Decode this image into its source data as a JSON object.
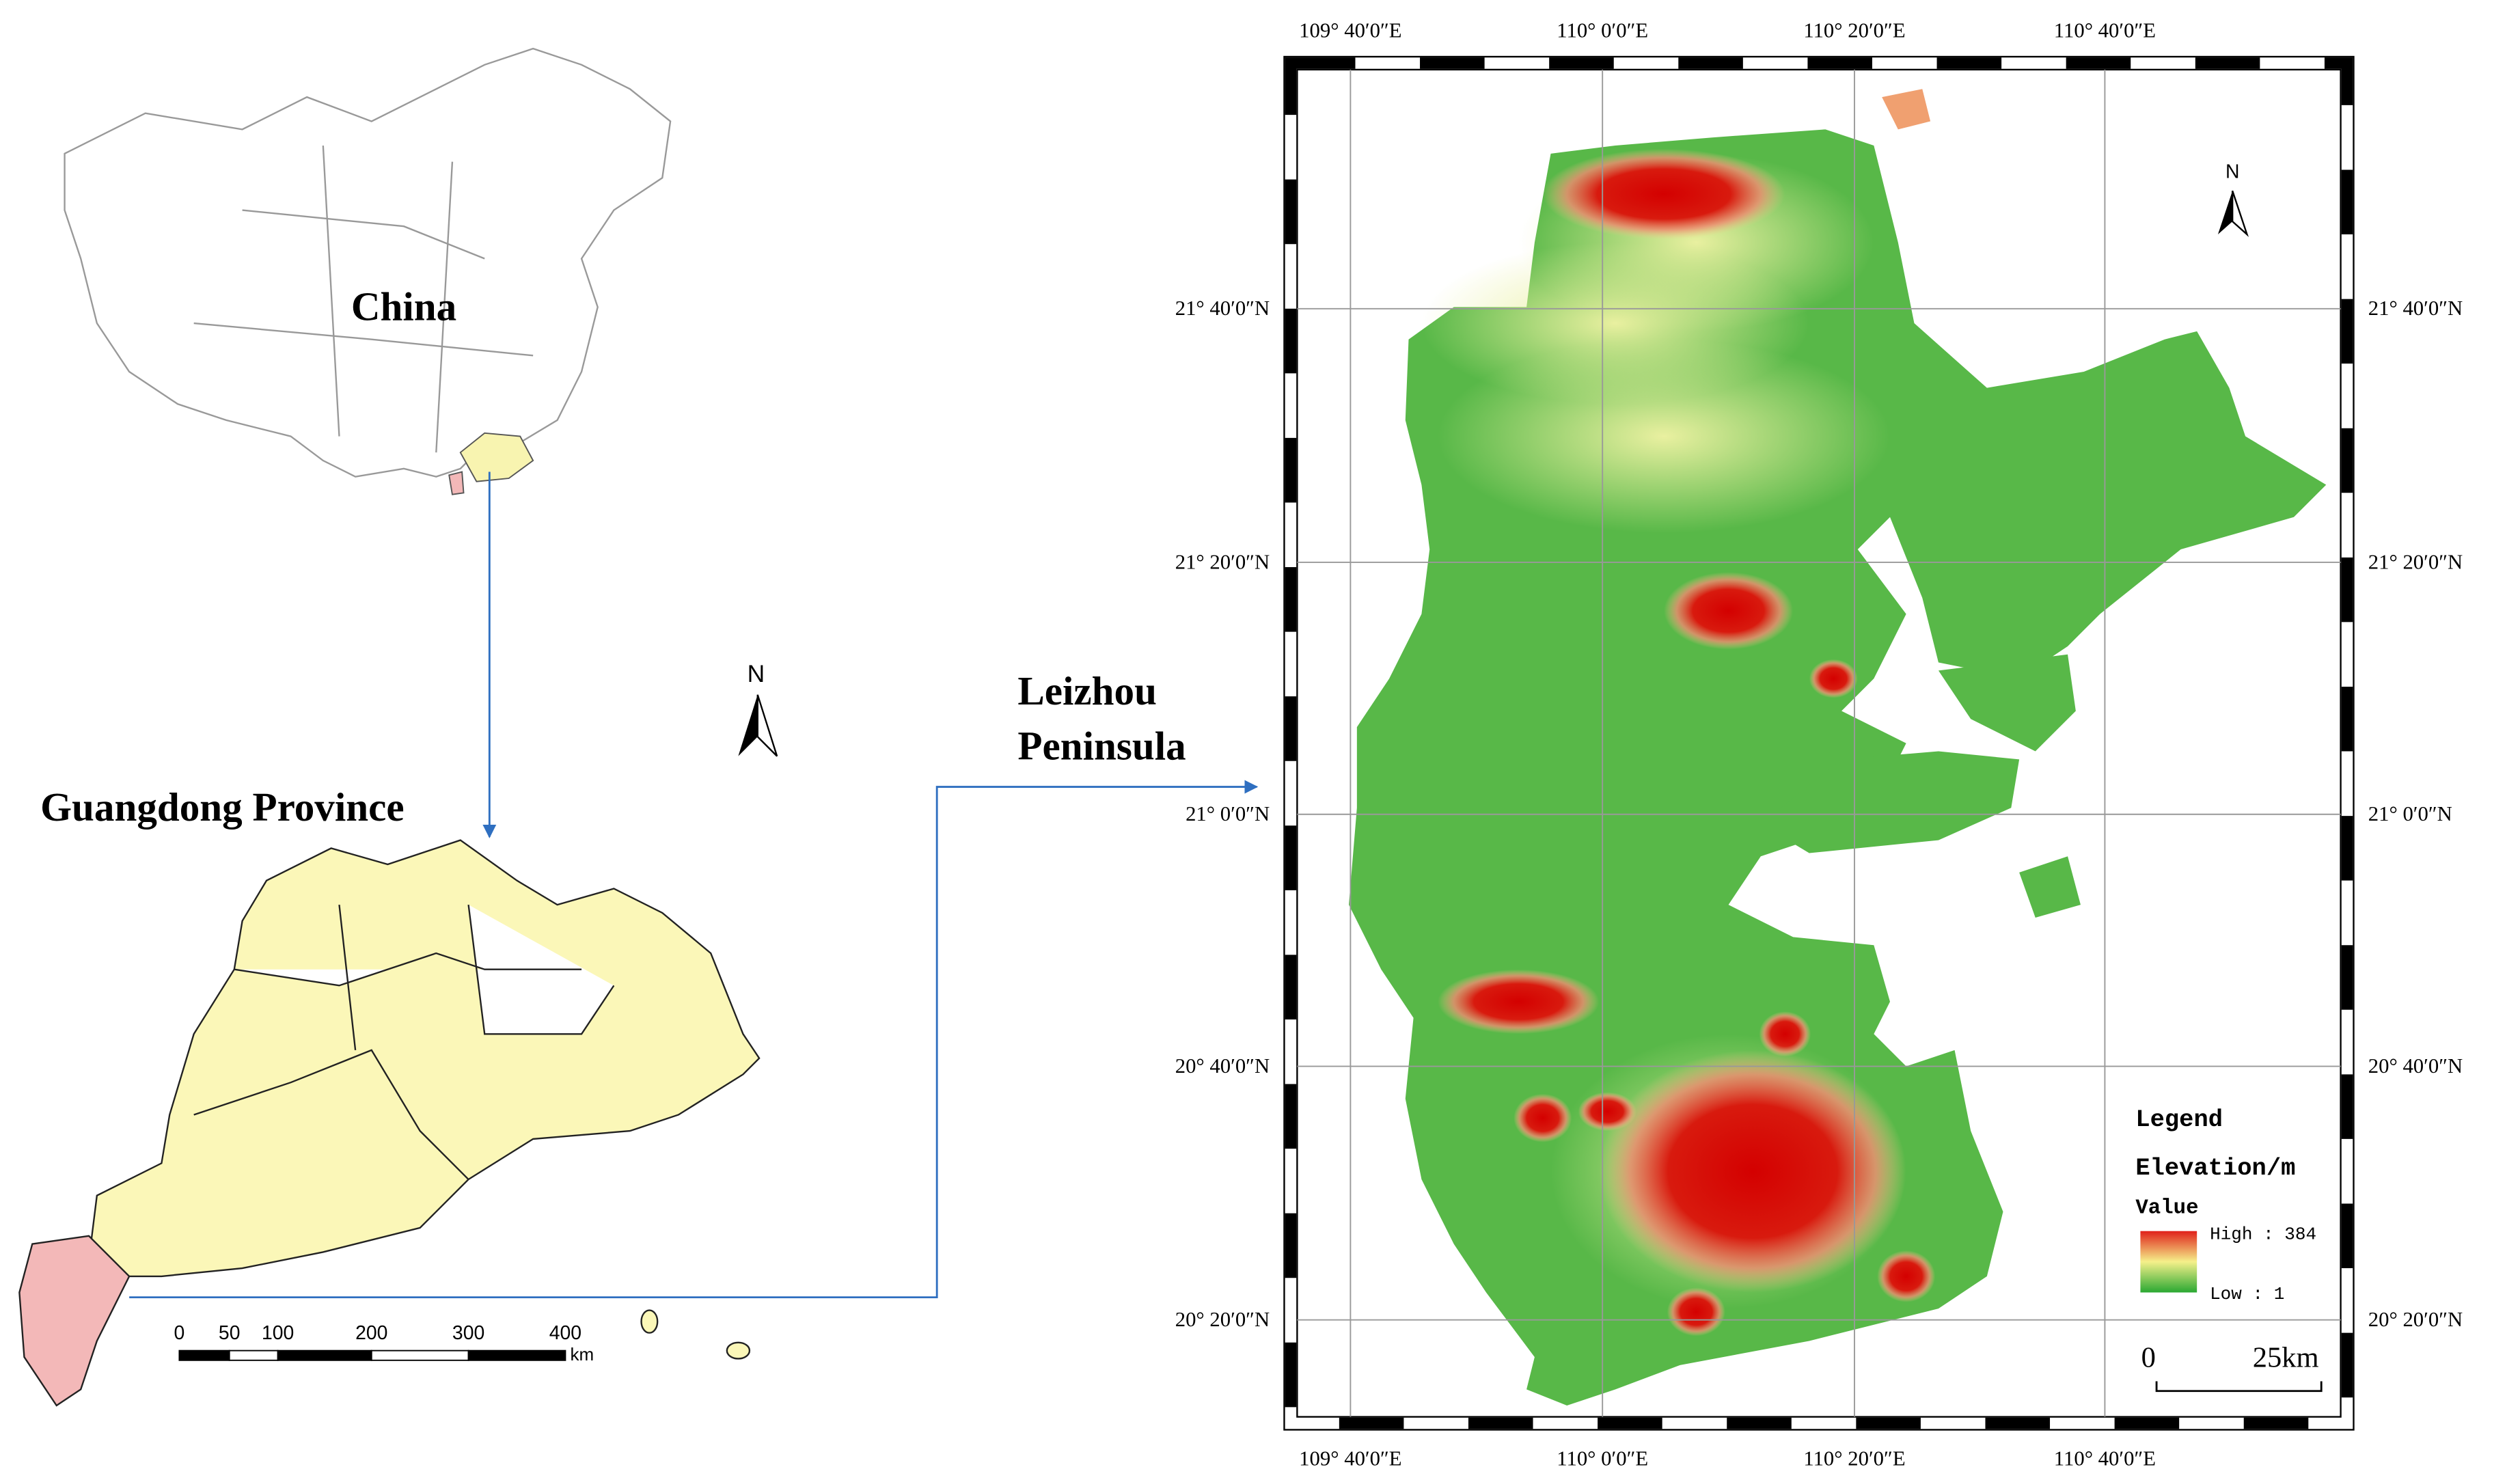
{
  "left_panel": {
    "china_label": "China",
    "guangdong_label": "Guangdong Province",
    "north_label": "N",
    "scale_bar": {
      "labels": [
        "0",
        "50",
        "100",
        "200",
        "300",
        "400"
      ],
      "unit": "km"
    }
  },
  "arrow_label": {
    "lines": [
      "Leizhou",
      "Peninsula"
    ]
  },
  "right_panel": {
    "lon_labels": [
      "109° 40′0″E",
      "110° 0′0″E",
      "110° 20′0″E",
      "110° 40′0″E"
    ],
    "lat_labels": [
      "21° 40′0″N",
      "21° 20′0″N",
      "21° 0′0″N",
      "20° 40′0″N",
      "20° 20′0″N"
    ],
    "north_label": "N",
    "legend": {
      "title": "Legend",
      "field": "Elevation/m",
      "value_label": "Value",
      "high": "High : 384",
      "low": "Low : 1"
    },
    "scale_bar": {
      "start": "0",
      "end": "25km"
    }
  }
}
